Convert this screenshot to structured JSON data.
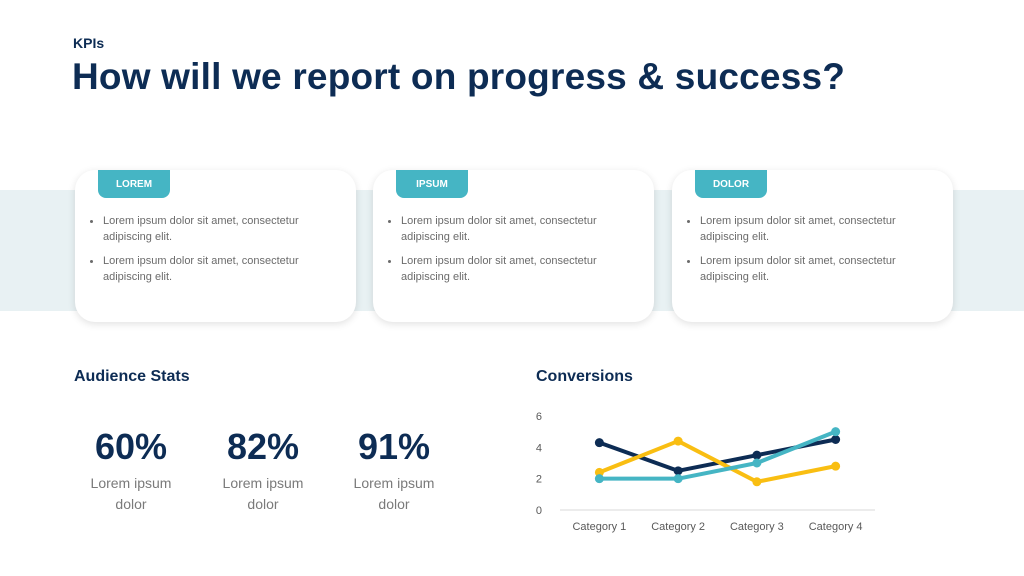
{
  "header": {
    "eyebrow": "KPIs",
    "title": "How will we report on progress & success?"
  },
  "cards": [
    {
      "tab": "LOREM",
      "bullets": [
        "Lorem ipsum dolor sit amet, consectetur adipiscing elit.",
        "Lorem ipsum dolor sit amet, consectetur adipiscing elit."
      ]
    },
    {
      "tab": "IPSUM",
      "bullets": [
        "Lorem ipsum dolor sit amet, consectetur adipiscing elit.",
        "Lorem ipsum dolor sit amet, consectetur adipiscing elit."
      ]
    },
    {
      "tab": "DOLOR",
      "bullets": [
        "Lorem ipsum dolor sit amet, consectetur adipiscing elit.",
        "Lorem ipsum dolor sit amet, consectetur adipiscing elit."
      ]
    }
  ],
  "audience": {
    "title": "Audience Stats",
    "stats": [
      {
        "value": "60%",
        "label": "Lorem ipsum dolor"
      },
      {
        "value": "82%",
        "label": "Lorem ipsum dolor"
      },
      {
        "value": "91%",
        "label": "Lorem ipsum dolor"
      }
    ]
  },
  "conversions": {
    "title": "Conversions"
  },
  "colors": {
    "navy": "#0d2c54",
    "teal": "#45b5c4",
    "yellow": "#f9be12",
    "band": "#e8f1f3"
  },
  "chart_data": {
    "type": "line",
    "title": "",
    "categories": [
      "Category 1",
      "Category 2",
      "Category 3",
      "Category 4"
    ],
    "series": [
      {
        "values": [
          4.3,
          2.5,
          3.5,
          4.5
        ],
        "color": "#0d2c54"
      },
      {
        "values": [
          2.4,
          4.4,
          1.8,
          2.8
        ],
        "color": "#f9be12"
      },
      {
        "values": [
          2.0,
          2.0,
          3.0,
          5.0
        ],
        "color": "#45b5c4"
      }
    ],
    "yticks": [
      0,
      2,
      4,
      6
    ],
    "ylim": [
      0,
      6
    ],
    "grid": false,
    "legend": "none"
  }
}
